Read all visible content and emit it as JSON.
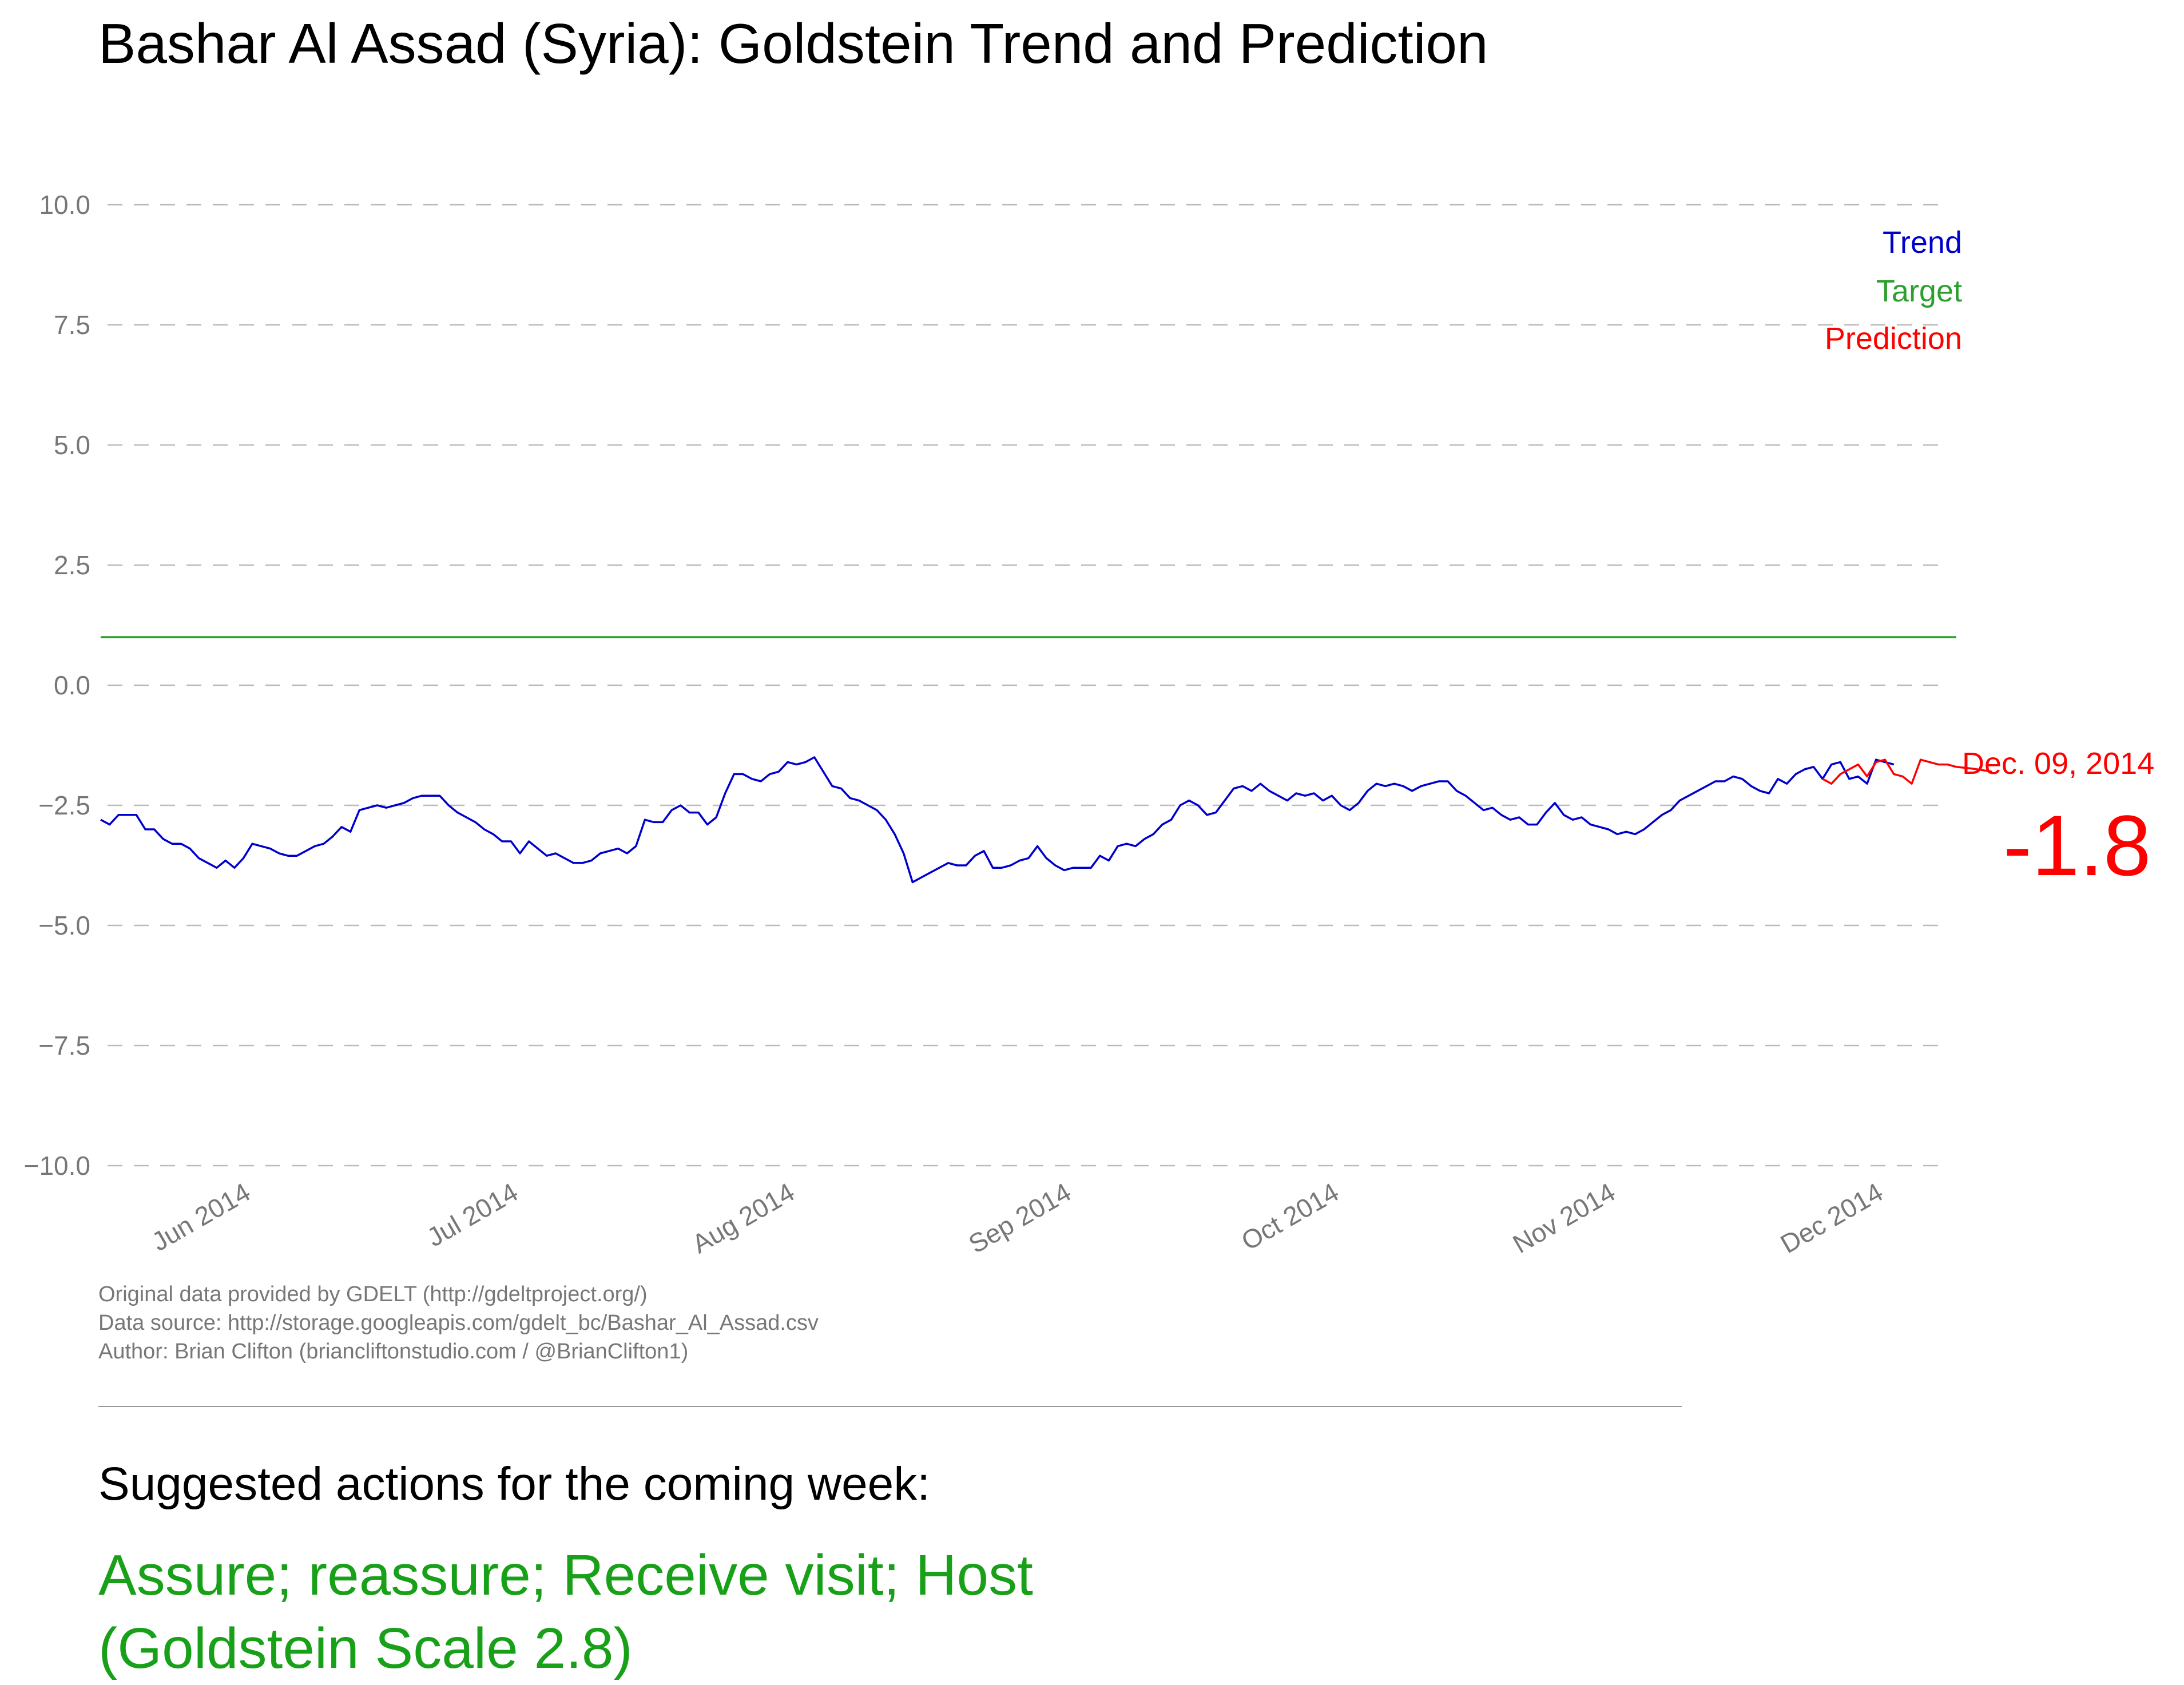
{
  "title": "Bashar Al Assad (Syria): Goldstein Trend and Prediction",
  "colors": {
    "trend": "#0000cc",
    "target": "#2ca02c",
    "prediction": "#ff0000",
    "action": "#18a018",
    "grid": "#bbbbbb",
    "tick": "#777777"
  },
  "chart_data": {
    "type": "line",
    "title": "Bashar Al Assad (Syria): Goldstein Trend and Prediction",
    "xlabel": "",
    "ylabel": "",
    "ylim": [
      -10,
      10
    ],
    "xlim": [
      "2014-05-15",
      "2014-12-09"
    ],
    "y_ticks": [
      "−10.0",
      "−7.5",
      "−5.0",
      "−2.5",
      "0.0",
      "2.5",
      "5.0",
      "7.5",
      "10.0"
    ],
    "y_tick_values": [
      -10,
      -7.5,
      -5,
      -2.5,
      0,
      2.5,
      5,
      7.5,
      10
    ],
    "x_ticks": [
      {
        "date": "2014-06-01",
        "label": "Jun 2014"
      },
      {
        "date": "2014-07-01",
        "label": "Jul 2014"
      },
      {
        "date": "2014-08-01",
        "label": "Aug 2014"
      },
      {
        "date": "2014-09-01",
        "label": "Sep 2014"
      },
      {
        "date": "2014-10-01",
        "label": "Oct 2014"
      },
      {
        "date": "2014-11-01",
        "label": "Nov 2014"
      },
      {
        "date": "2014-12-01",
        "label": "Dec 2014"
      }
    ],
    "grid": "horizontal dashed",
    "legend": {
      "position": "top-right",
      "entries": [
        {
          "name": "Trend",
          "color": "#0000cc"
        },
        {
          "name": "Target",
          "color": "#2ca02c"
        },
        {
          "name": "Prediction",
          "color": "#ff0000"
        }
      ]
    },
    "target_value": 1.0,
    "series": [
      {
        "name": "Trend",
        "color": "#0000cc",
        "start_date": "2014-05-15",
        "step_days": 1,
        "y": [
          -2.8,
          -2.9,
          -2.7,
          -2.7,
          -2.7,
          -3.0,
          -3.0,
          -3.2,
          -3.3,
          -3.3,
          -3.4,
          -3.6,
          -3.7,
          -3.8,
          -3.65,
          -3.8,
          -3.6,
          -3.3,
          -3.35,
          -3.4,
          -3.5,
          -3.55,
          -3.55,
          -3.45,
          -3.35,
          -3.3,
          -3.15,
          -2.95,
          -3.05,
          -2.6,
          -2.55,
          -2.5,
          -2.55,
          -2.5,
          -2.45,
          -2.35,
          -2.3,
          -2.3,
          -2.3,
          -2.5,
          -2.65,
          -2.75,
          -2.85,
          -3.0,
          -3.1,
          -3.25,
          -3.25,
          -3.5,
          -3.25,
          -3.4,
          -3.55,
          -3.5,
          -3.6,
          -3.7,
          -3.7,
          -3.65,
          -3.5,
          -3.45,
          -3.4,
          -3.5,
          -3.35,
          -2.8,
          -2.85,
          -2.85,
          -2.6,
          -2.5,
          -2.65,
          -2.65,
          -2.9,
          -2.75,
          -2.25,
          -1.85,
          -1.85,
          -1.95,
          -2.0,
          -1.85,
          -1.8,
          -1.6,
          -1.65,
          -1.6,
          -1.5,
          -1.8,
          -2.1,
          -2.15,
          -2.35,
          -2.4,
          -2.5,
          -2.6,
          -2.8,
          -3.1,
          -3.5,
          -4.1,
          -4.0,
          -3.9,
          -3.8,
          -3.7,
          -3.75,
          -3.75,
          -3.55,
          -3.45,
          -3.8,
          -3.8,
          -3.75,
          -3.65,
          -3.6,
          -3.35,
          -3.6,
          -3.75,
          -3.85,
          -3.8,
          -3.8,
          -3.8,
          -3.55,
          -3.65,
          -3.35,
          -3.3,
          -3.35,
          -3.2,
          -3.1,
          -2.9,
          -2.8,
          -2.5,
          -2.4,
          -2.5,
          -2.7,
          -2.65,
          -2.4,
          -2.15,
          -2.1,
          -2.2,
          -2.05,
          -2.2,
          -2.3,
          -2.4,
          -2.25,
          -2.3,
          -2.25,
          -2.4,
          -2.3,
          -2.5,
          -2.6,
          -2.45,
          -2.2,
          -2.05,
          -2.1,
          -2.05,
          -2.1,
          -2.2,
          -2.1,
          -2.05,
          -2.0,
          -2.0,
          -2.2,
          -2.3,
          -2.45,
          -2.6,
          -2.55,
          -2.7,
          -2.8,
          -2.75,
          -2.9,
          -2.9,
          -2.65,
          -2.45,
          -2.7,
          -2.8,
          -2.75,
          -2.9,
          -2.95,
          -3.0,
          -3.1,
          -3.05,
          -3.1,
          -3.0,
          -2.85,
          -2.7,
          -2.6,
          -2.4,
          -2.3,
          -2.2,
          -2.1,
          -2.0,
          -2.0,
          -1.9,
          -1.95,
          -2.1,
          -2.2,
          -2.25,
          -1.95,
          -2.05,
          -1.85,
          -1.75,
          -1.7,
          -1.95,
          -1.65,
          -1.6,
          -1.95,
          -1.9,
          -2.05,
          -1.55,
          -1.6,
          -1.65
        ]
      },
      {
        "name": "Prediction",
        "color": "#ff0000",
        "start_date": "2014-11-24",
        "step_days": 1,
        "y": [
          -1.95,
          -2.05,
          -1.85,
          -1.75,
          -1.65,
          -1.9,
          -1.6,
          -1.55,
          -1.85,
          -1.9,
          -2.05,
          -1.55,
          -1.6,
          -1.65,
          -1.65,
          -1.7,
          -1.72,
          -1.74,
          -1.77,
          -1.8
        ]
      }
    ],
    "annotation": {
      "date_label": "Dec. 09, 2014",
      "value_label": "-1.8",
      "value": -1.8
    }
  },
  "credits": {
    "line1": "Original data provided by GDELT (http://gdeltproject.org/)",
    "line2": "Data source: http://storage.googleapis.com/gdelt_bc/Bashar_Al_Assad.csv",
    "line3": "Author: Brian Clifton (briancliftonstudio.com / @BrianClifton1)"
  },
  "actions": {
    "heading": "Suggested actions for the coming week:",
    "line1": "Assure; reassure; Receive visit; Host",
    "line2": "(Goldstein Scale 2.8)"
  }
}
